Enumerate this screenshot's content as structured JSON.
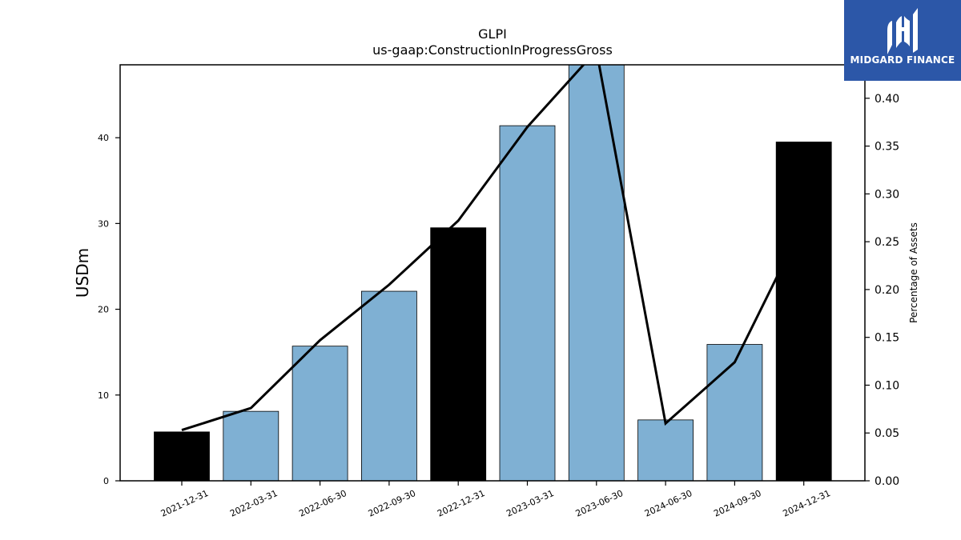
{
  "chart_data": {
    "type": "bar",
    "title": "GLPI",
    "subtitle": "us-gaap:ConstructionInProgressGross",
    "ylabel": "USDm",
    "y2label": "Percentage of Assets",
    "categories": [
      "2021-12-31",
      "2022-03-31",
      "2022-06-30",
      "2022-09-30",
      "2022-12-31",
      "2023-03-31",
      "2023-06-30",
      "2024-06-30",
      "2024-09-30",
      "2024-12-31"
    ],
    "series": [
      {
        "values": [
          5.7,
          8.1,
          15.7,
          22.1,
          29.5,
          41.4,
          48.5,
          7.1,
          15.9,
          39.5
        ]
      },
      {
        "axis": "right",
        "type": "line",
        "values": [
          0.053,
          0.076,
          0.147,
          0.205,
          0.272,
          0.37,
          0.45,
          0.06,
          0.124,
          0.27
        ]
      }
    ],
    "bar_colors": [
      "#000000",
      "#7fb0d3",
      "#7fb0d3",
      "#7fb0d3",
      "#000000",
      "#7fb0d3",
      "#7fb0d3",
      "#7fb0d3",
      "#7fb0d3",
      "#000000"
    ],
    "ylim": [
      0,
      48.5
    ],
    "y2lim": [
      0,
      0.435
    ],
    "yticks": [
      0,
      10,
      20,
      30,
      40
    ],
    "y2ticks": [
      "0.00",
      "0.05",
      "0.10",
      "0.15",
      "0.20",
      "0.25",
      "0.30",
      "0.35",
      "0.40"
    ],
    "grid": false,
    "line_color": "#000000"
  },
  "logo": {
    "text": "MIDGARD FINANCE",
    "icon": "midgard-logo-icon",
    "background": "#2c57a8"
  }
}
